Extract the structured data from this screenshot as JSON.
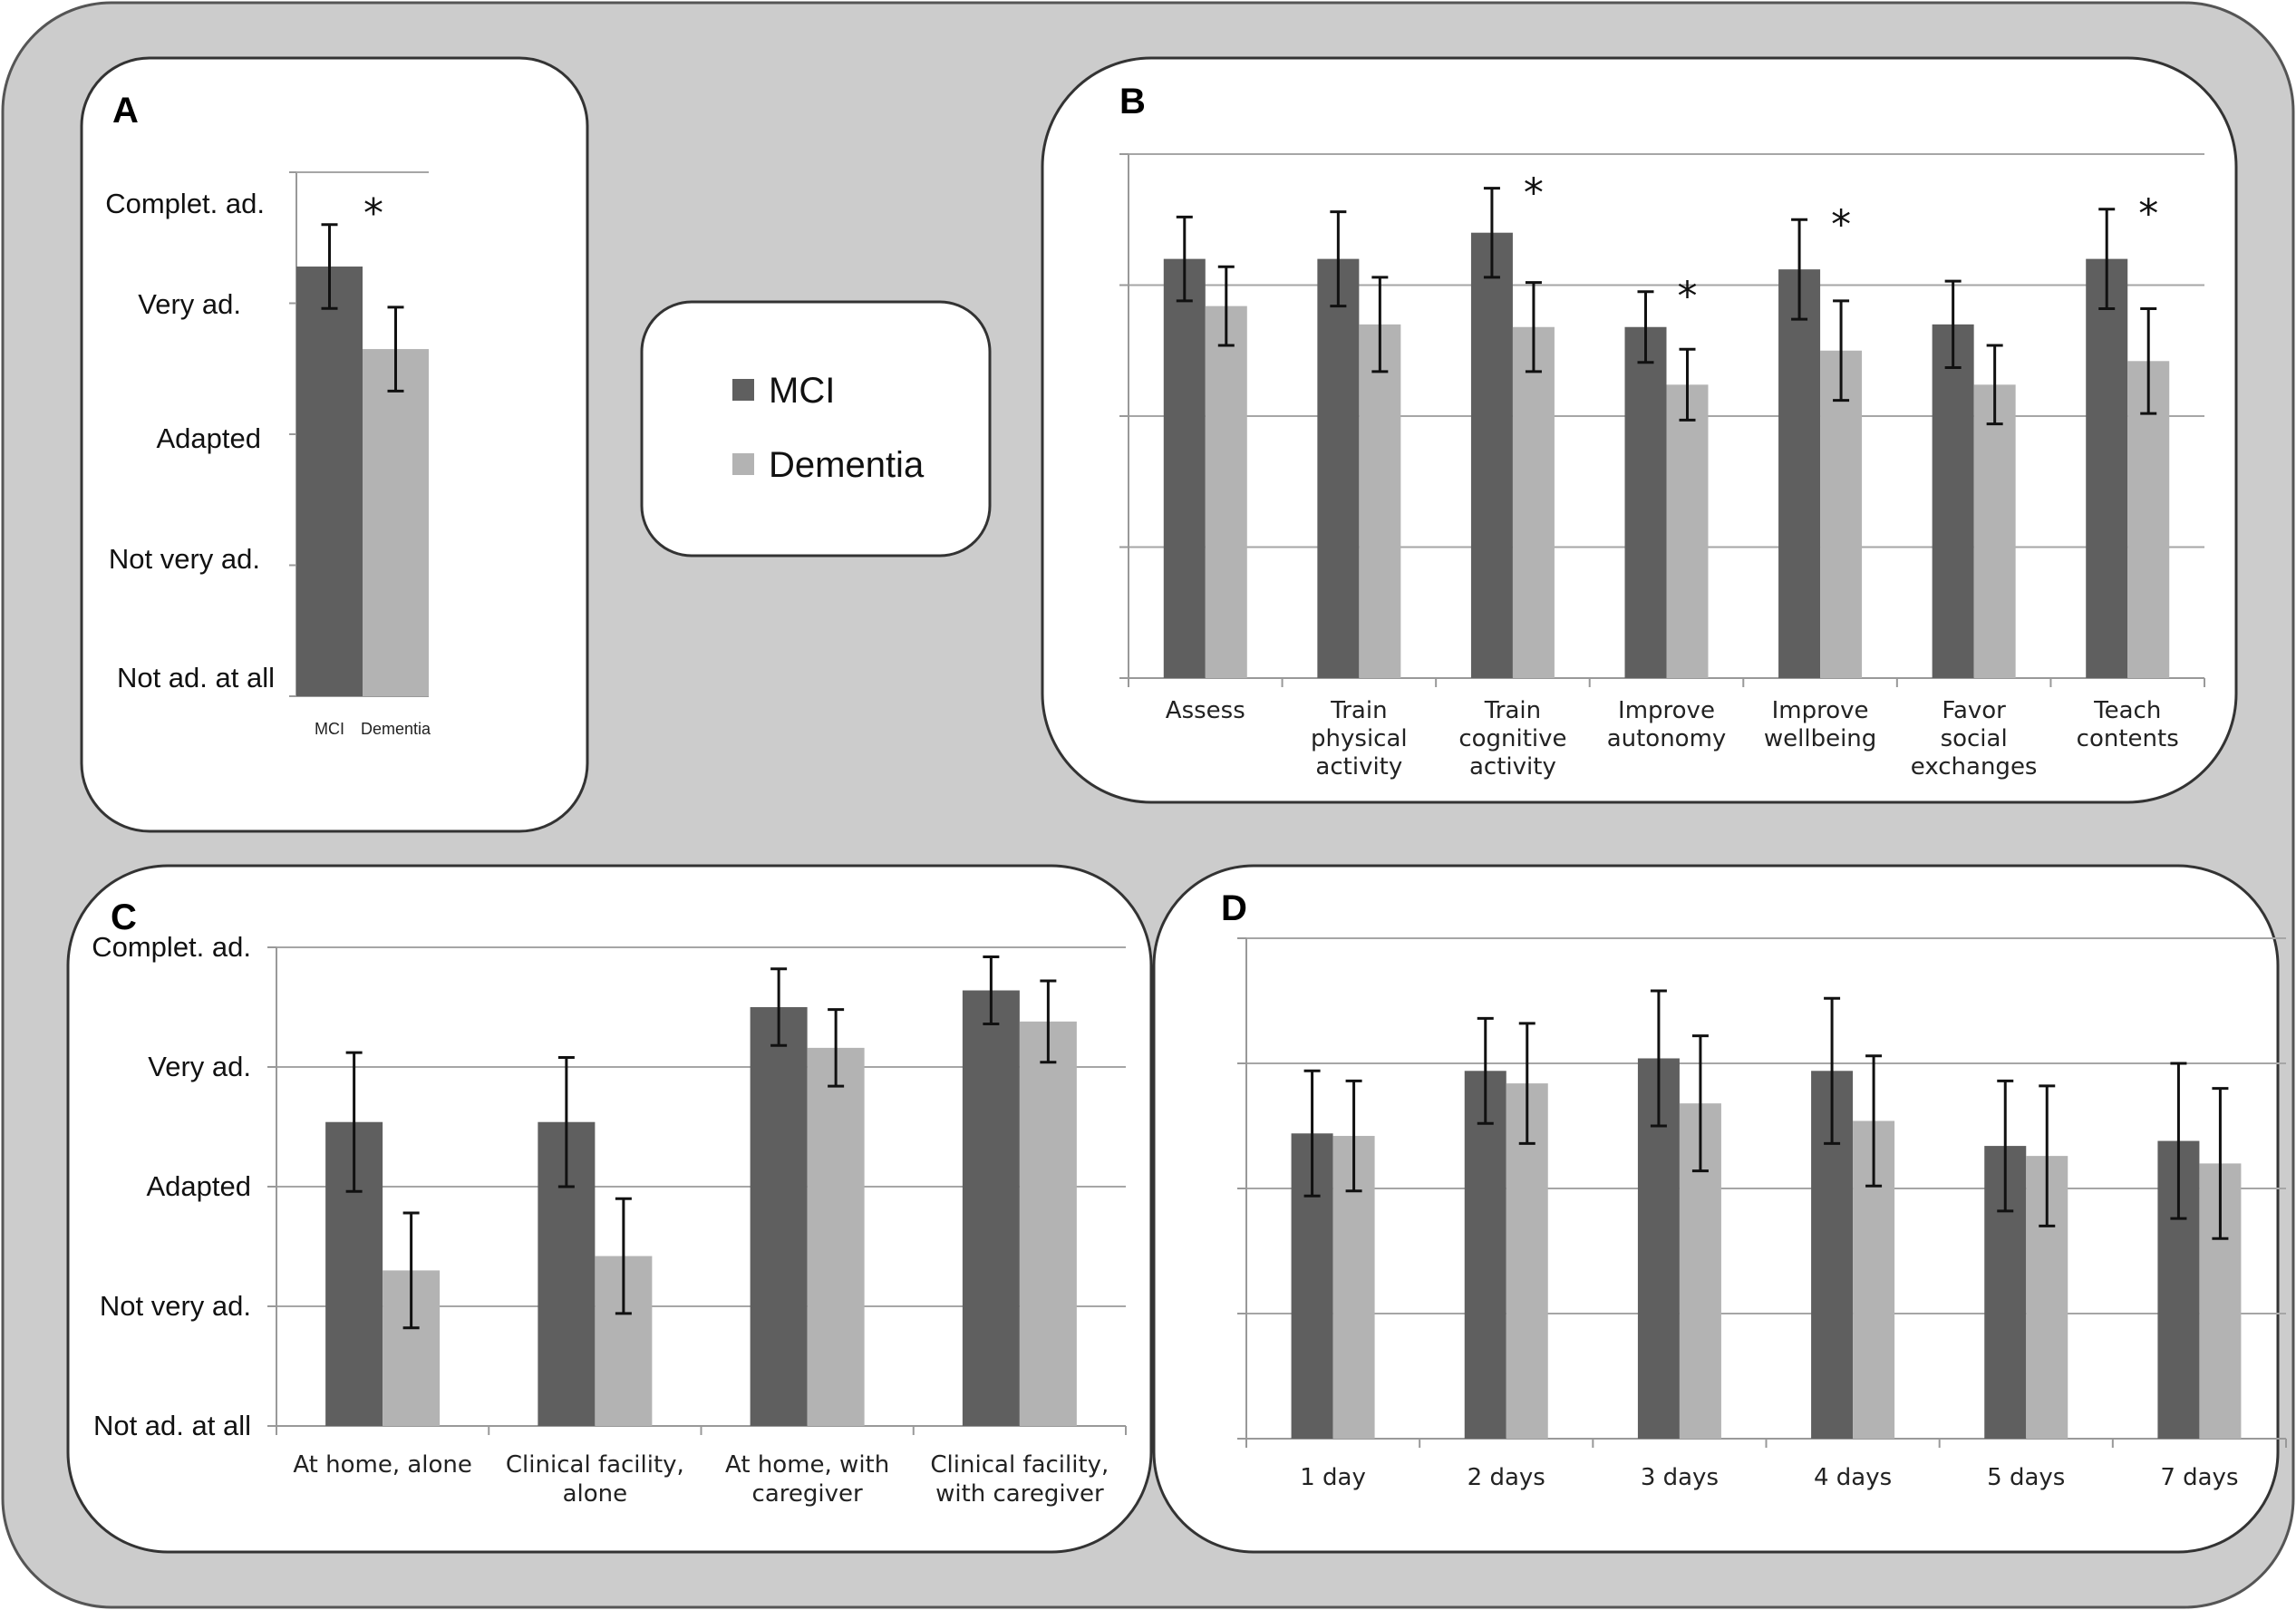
{
  "colors": {
    "mci": "#5f5f5f",
    "dementia": "#b3b3b3",
    "background": "#cccccc",
    "panel": "#ffffff",
    "grid": "#a6a6a6",
    "axis": "#999999"
  },
  "legend": {
    "items": [
      {
        "key": "mci",
        "label": "MCI"
      },
      {
        "key": "dementia",
        "label": "Dementia"
      }
    ]
  },
  "chart_data": [
    {
      "panel": "A",
      "type": "bar",
      "y_tick_labels": [
        "Not ad. at all",
        "Not very ad.",
        "Adapted",
        "Very ad.",
        "Complet. ad."
      ],
      "ylim": [
        0,
        4
      ],
      "categories": [
        "MCI",
        "Dementia"
      ],
      "values": [
        3.28,
        2.65
      ],
      "errors": [
        0.32,
        0.32
      ],
      "colors": [
        "#5f5f5f",
        "#b3b3b3"
      ],
      "significance": "*"
    },
    {
      "panel": "B",
      "type": "bar",
      "ylim": [
        0,
        4
      ],
      "y_tick_labels": [],
      "categories": [
        "Assess",
        "Train physical activity",
        "Train cognitive activity",
        "Improve autonomy",
        "Improve wellbeing",
        "Favor social exchanges",
        "Teach contents"
      ],
      "series": [
        {
          "name": "MCI",
          "values": [
            3.2,
            3.2,
            3.4,
            2.68,
            3.12,
            2.7,
            3.2
          ],
          "errors": [
            0.32,
            0.36,
            0.34,
            0.27,
            0.38,
            0.33,
            0.38
          ]
        },
        {
          "name": "Dementia",
          "values": [
            2.84,
            2.7,
            2.68,
            2.24,
            2.5,
            2.24,
            2.42
          ],
          "errors": [
            0.3,
            0.36,
            0.34,
            0.27,
            0.38,
            0.3,
            0.4
          ]
        }
      ],
      "significance": [
        "",
        "",
        "*",
        "*",
        "*",
        "",
        "*"
      ]
    },
    {
      "panel": "C",
      "type": "bar",
      "y_tick_labels": [
        "Not ad. at all",
        "Not very ad.",
        "Adapted",
        "Very ad.",
        "Complet. ad."
      ],
      "ylim": [
        0,
        4
      ],
      "categories": [
        "At home, alone",
        "Clinical facility, alone",
        "At home, with caregiver",
        "Clinical facility, with caregiver"
      ],
      "series": [
        {
          "name": "MCI",
          "values": [
            2.54,
            2.54,
            3.5,
            3.64
          ],
          "errors": [
            0.58,
            0.54,
            0.32,
            0.28
          ]
        },
        {
          "name": "Dementia",
          "values": [
            1.3,
            1.42,
            3.16,
            3.38
          ],
          "errors": [
            0.48,
            0.48,
            0.32,
            0.34
          ]
        }
      ],
      "significance": [
        "",
        "",
        "",
        ""
      ]
    },
    {
      "panel": "D",
      "type": "bar",
      "ylim": [
        0,
        4
      ],
      "y_tick_labels": [],
      "categories": [
        "1 day",
        "2 days",
        "3 days",
        "4 days",
        "5 days",
        "7 days"
      ],
      "series": [
        {
          "name": "MCI",
          "values": [
            2.44,
            2.94,
            3.04,
            2.94,
            2.34,
            2.38
          ],
          "errors": [
            0.5,
            0.42,
            0.54,
            0.58,
            0.52,
            0.62
          ]
        },
        {
          "name": "Dementia",
          "values": [
            2.42,
            2.84,
            2.68,
            2.54,
            2.26,
            2.2
          ],
          "errors": [
            0.44,
            0.48,
            0.54,
            0.52,
            0.56,
            0.6
          ]
        }
      ],
      "significance": [
        "",
        "",
        "",
        "",
        "",
        ""
      ]
    }
  ]
}
